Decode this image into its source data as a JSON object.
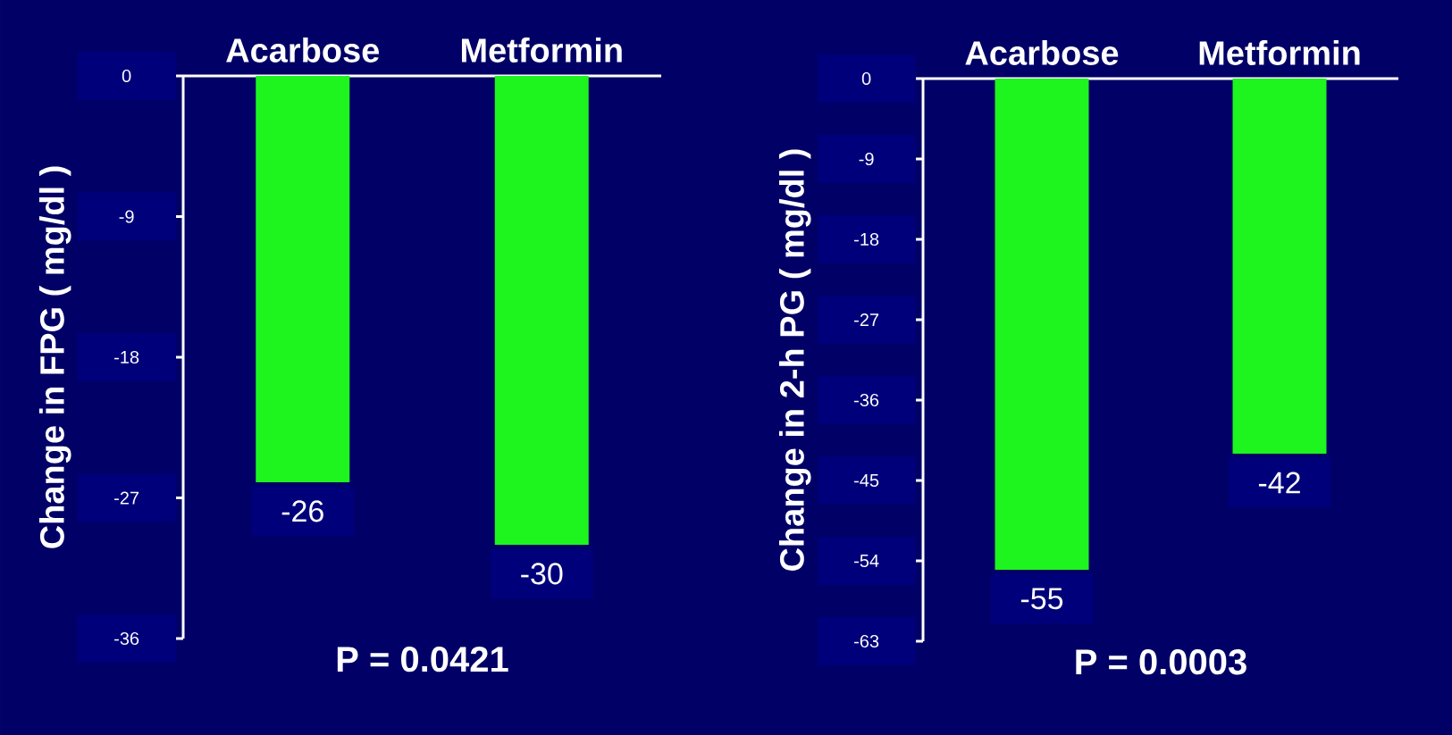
{
  "chart_data": [
    {
      "type": "bar",
      "categories": [
        "Acarbose",
        "Metformin"
      ],
      "values": [
        -26,
        -30
      ],
      "color": "#1ef41e",
      "ylim": [
        -36,
        0
      ],
      "yticks": [
        -36,
        -27,
        -18,
        -9,
        0
      ],
      "ylabel": "Change in FPG ( mg/dl )",
      "data_labels": true,
      "annotations": [
        "P = 0.0421"
      ]
    },
    {
      "type": "bar",
      "categories": [
        "Acarbose",
        "Metformin"
      ],
      "values": [
        -55,
        -42
      ],
      "color": "#1ef41e",
      "ylim": [
        -63,
        0
      ],
      "yticks": [
        -63,
        -54,
        -45,
        -36,
        -27,
        -18,
        -9,
        0
      ],
      "ylabel": "Change in 2-h PG ( mg/dl )",
      "data_labels": true,
      "annotations": [
        "P = 0.0003"
      ]
    }
  ]
}
